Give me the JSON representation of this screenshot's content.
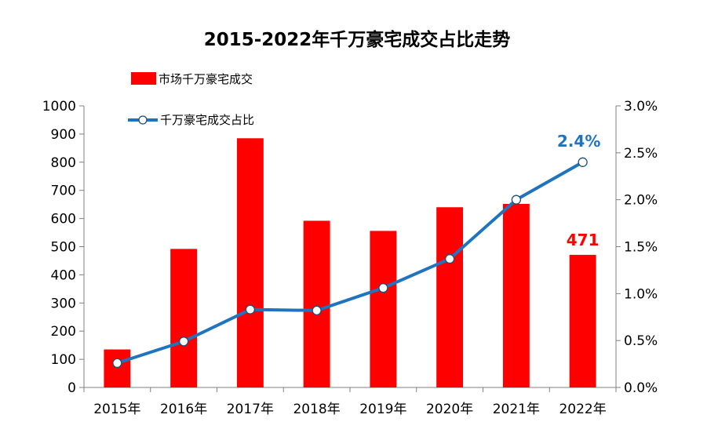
{
  "chart_data": {
    "type": "bar",
    "title": "2015-2022年千万豪宅成交占比走势",
    "categories": [
      "2015年",
      "2016年",
      "2017年",
      "2018年",
      "2019年",
      "2020年",
      "2021年",
      "2022年"
    ],
    "series": [
      {
        "name": "市场千万豪宅成交",
        "type": "bar",
        "axis": "left",
        "color": "#ff0000",
        "values": [
          135,
          492,
          885,
          592,
          556,
          640,
          652,
          471
        ]
      },
      {
        "name": "千万豪宅成交占比",
        "type": "line",
        "axis": "right",
        "color": "#1f74c0",
        "values": [
          0.26,
          0.49,
          0.83,
          0.82,
          1.06,
          1.37,
          2.0,
          2.4
        ]
      }
    ],
    "y_left": {
      "min": 0,
      "max": 1000,
      "step": 100,
      "ticks": [
        "0",
        "100",
        "200",
        "300",
        "400",
        "500",
        "600",
        "700",
        "800",
        "900",
        "1000"
      ]
    },
    "y_right": {
      "min": 0,
      "max": 3.0,
      "step": 0.5,
      "ticks": [
        "0.0%",
        "0.5%",
        "1.0%",
        "1.5%",
        "2.0%",
        "2.5%",
        "3.0%"
      ]
    },
    "annotations": [
      {
        "series": 0,
        "index": 7,
        "text": "471"
      },
      {
        "series": 1,
        "index": 7,
        "text": "2.4%"
      }
    ],
    "legend": {
      "placement": "top-left"
    },
    "grid": false
  }
}
